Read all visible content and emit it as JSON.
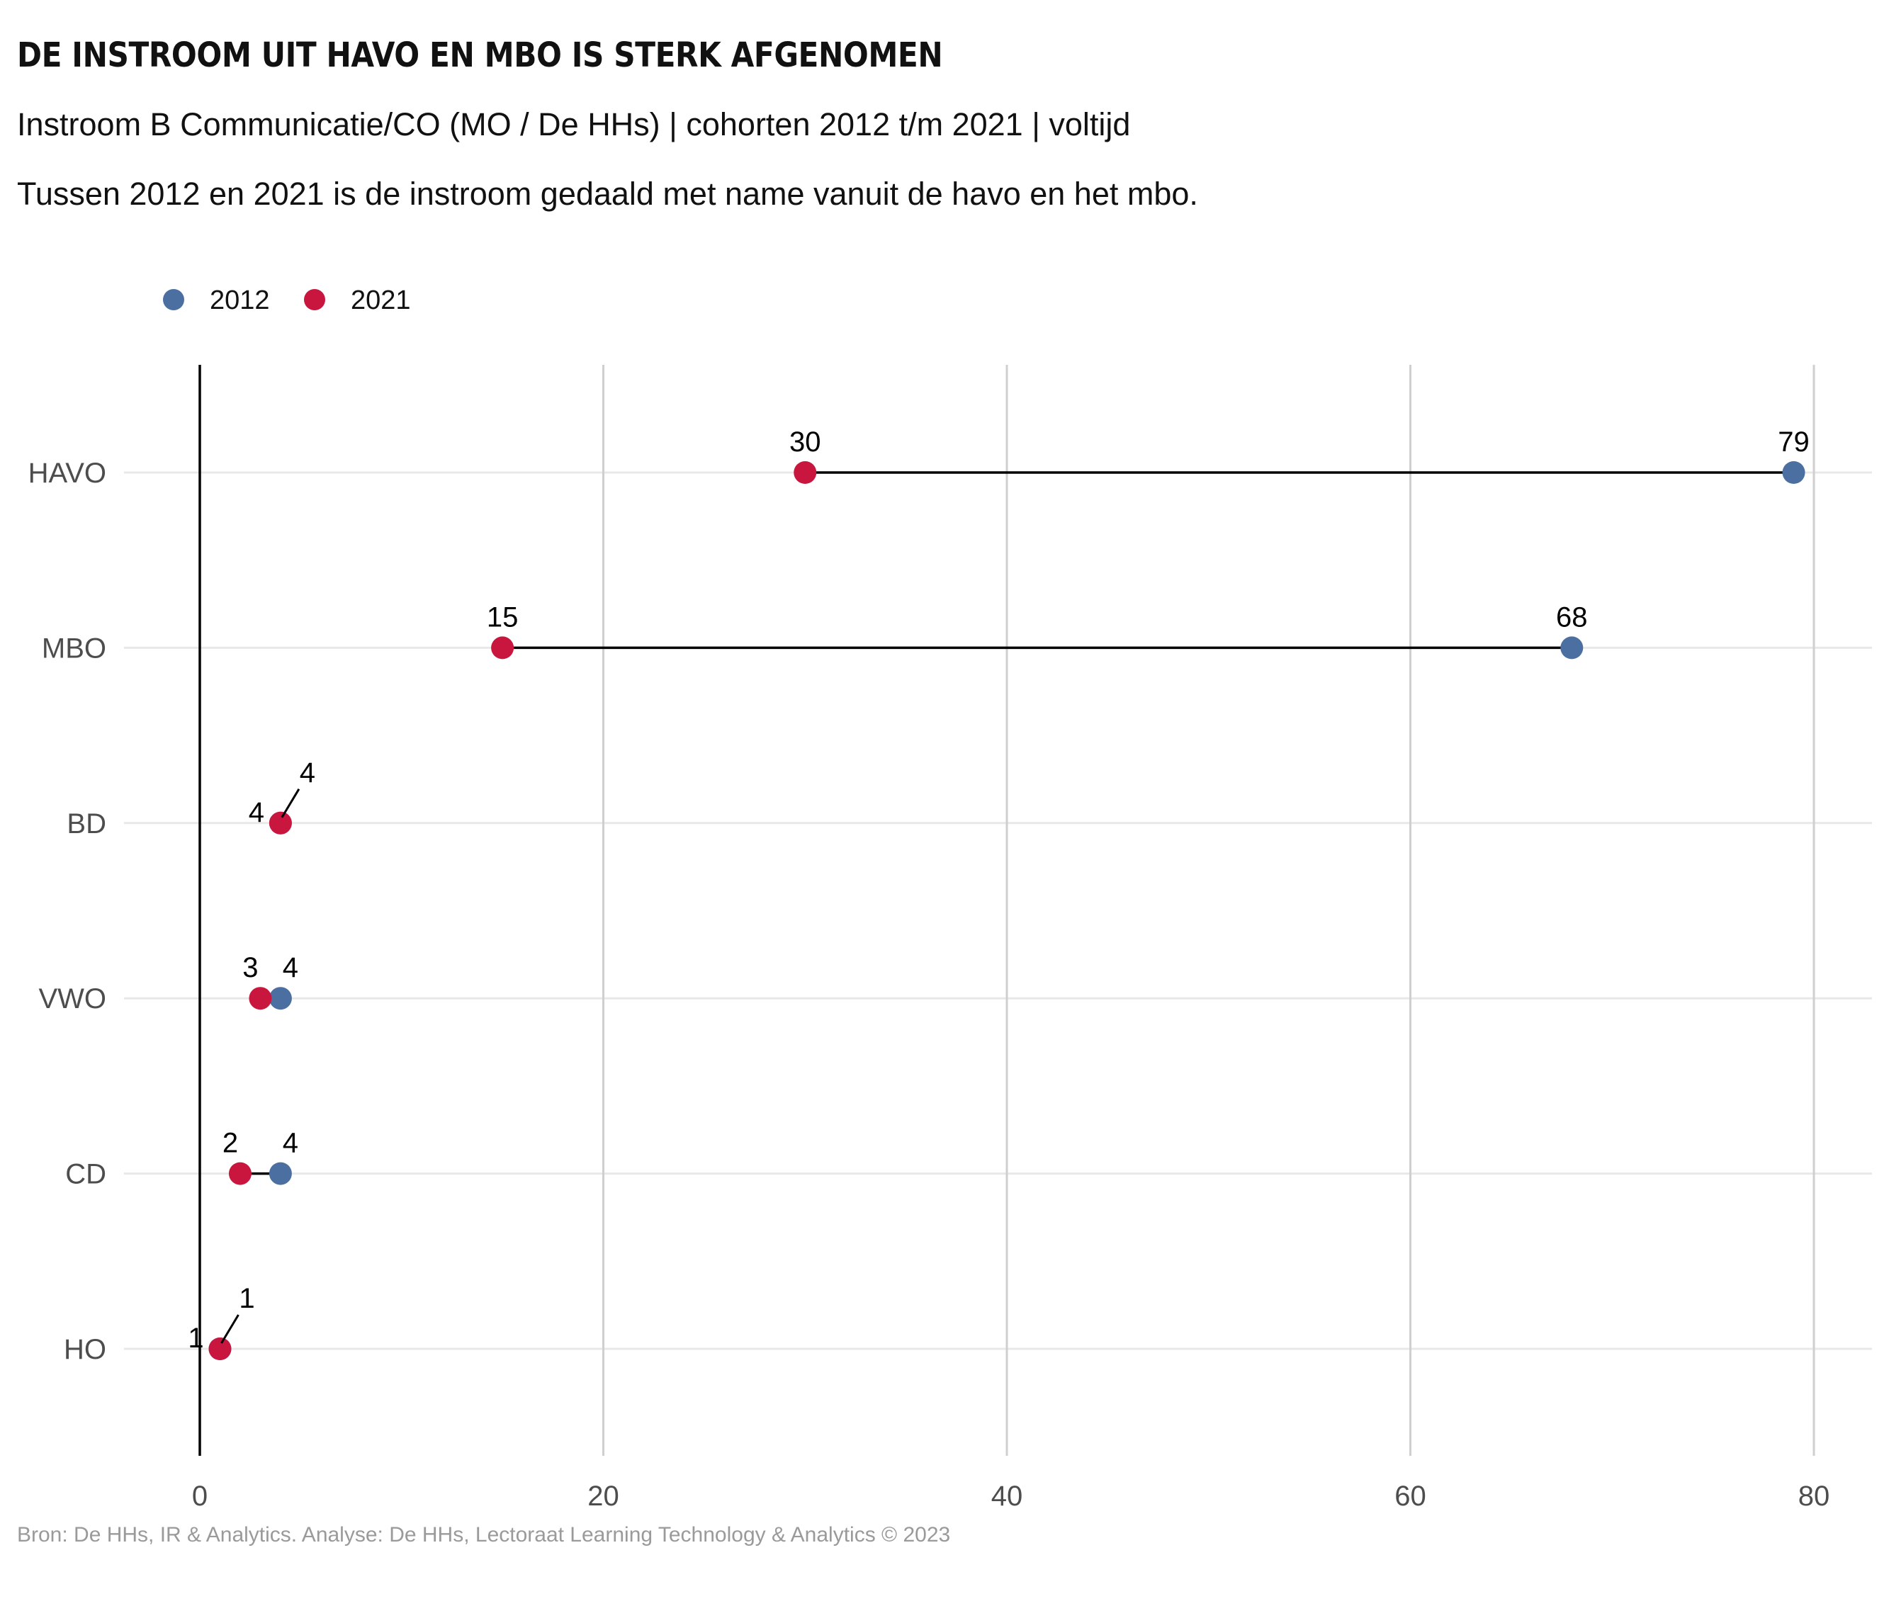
{
  "header": {
    "title": "DE INSTROOM UIT HAVO EN MBO IS STERK AFGENOMEN",
    "subtitle": "Instroom B Communicatie/CO (MO / De HHs) | cohorten 2012 t/m 2021 | voltijd",
    "caption": "Tussen 2012 en 2021 is de instroom gedaald met name vanuit de havo en het mbo."
  },
  "footer": {
    "source": "Bron: De HHs, IR & Analytics. Analyse: De HHs, Lectoraat Learning Technology & Analytics © 2023"
  },
  "colors": {
    "series_2012": "#4a6fa0",
    "series_2021": "#c8163f",
    "gridline": "#cfcfcf",
    "hgrid": "#e8e8e8",
    "axis": "#000000"
  },
  "chart_data": {
    "type": "dumbbell",
    "legend_position": "top-left",
    "grid": true,
    "categories": [
      "HAVO",
      "MBO",
      "BD",
      "VWO",
      "CD",
      "HO"
    ],
    "series": [
      {
        "name": "2012",
        "values": [
          79,
          68,
          4,
          4,
          4,
          1
        ]
      },
      {
        "name": "2021",
        "values": [
          30,
          15,
          4,
          3,
          2,
          1
        ]
      }
    ],
    "xlim": [
      0,
      80
    ],
    "xticks": [
      0,
      20,
      40,
      60,
      80
    ],
    "xlabel": "",
    "ylabel": ""
  }
}
